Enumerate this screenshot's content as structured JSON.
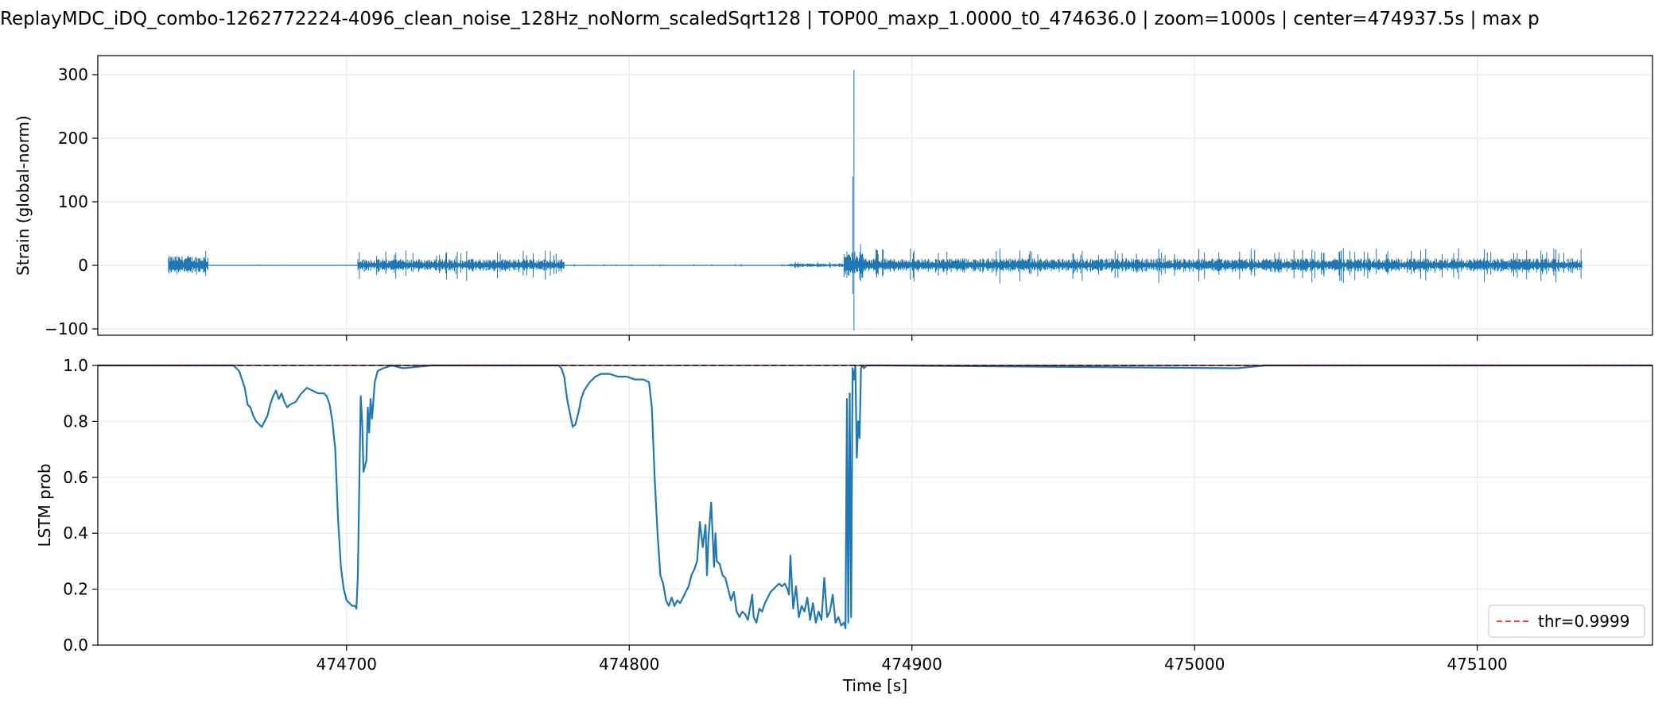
{
  "chart_data": [
    {
      "type": "line",
      "title": "ReplayMDC_iDQ_combo-1262772224-4096_clean_noise_128Hz_noNorm_scaledSqrt128 | TOP00_maxp_1.0000_t0_474636.0 | zoom=1000s | center=474937.5s | max p",
      "xlabel": "",
      "ylabel": "Strain (global-norm)",
      "xlim": [
        474612,
        475162
      ],
      "ylim": [
        -110,
        330
      ],
      "x_ticks": [
        474700,
        474800,
        474900,
        475000,
        475100
      ],
      "y_ticks": [
        -100,
        0,
        100,
        200,
        300
      ],
      "y_tick_labels": [
        "−100",
        "0",
        "100",
        "200",
        "300"
      ],
      "grid": true,
      "color": "#1f77b4",
      "series": [
        {
          "segments": [
            {
              "x_start": 474637,
              "x_end": 474651,
              "amplitude": 15,
              "peak": 27
            },
            {
              "x_start": 474651,
              "x_end": 474704,
              "amplitude": 0.4,
              "peak": 1
            },
            {
              "x_start": 474704,
              "x_end": 474777,
              "amplitude": 10,
              "peak": 24
            },
            {
              "x_start": 474777,
              "x_end": 474856,
              "amplitude": 0.6,
              "peak": 2
            },
            {
              "x_start": 474856,
              "x_end": 474876,
              "amplitude": 3,
              "peak": 6
            },
            {
              "x_start": 474876,
              "x_end": 474883,
              "amplitude": 22,
              "peak": 42
            },
            {
              "x_start": 474883,
              "x_end": 475137,
              "amplitude": 11,
              "peak": 27
            }
          ],
          "spike": {
            "x": 474879.5,
            "max": 308,
            "min": -103
          }
        }
      ]
    },
    {
      "type": "line",
      "xlabel": "Time [s]",
      "ylabel": "LSTM prob",
      "xlim": [
        474612,
        475162
      ],
      "ylim": [
        0.0,
        1.0
      ],
      "x_ticks": [
        474700,
        474800,
        474900,
        475000,
        475100
      ],
      "x_tick_labels": [
        "474700",
        "474800",
        "474900",
        "475000",
        "475100"
      ],
      "y_ticks": [
        0.0,
        0.2,
        0.4,
        0.6,
        0.8,
        1.0
      ],
      "y_tick_labels": [
        "0.0",
        "0.2",
        "0.4",
        "0.6",
        "0.8",
        "1.0"
      ],
      "grid": true,
      "legend": "lower-right",
      "threshold": {
        "value": 0.9999,
        "label": "thr=0.9999",
        "color": "#ff0000"
      },
      "series": [
        {
          "color": "#1f77b4",
          "x": [
            474612,
            474660,
            474662,
            474664,
            474665,
            474666,
            474667,
            474668,
            474669,
            474670,
            474671,
            474672,
            474673,
            474674,
            474675,
            474676,
            474677,
            474678,
            474679,
            474680,
            474682,
            474684,
            474686,
            474688,
            474690,
            474692,
            474693,
            474694,
            474695,
            474696,
            474697,
            474698,
            474699,
            474700,
            474701,
            474702,
            474703,
            474703.5,
            474704,
            474705,
            474705.5,
            474706,
            474707,
            474707.5,
            474708,
            474708.5,
            474709,
            474710,
            474711,
            474713,
            474716,
            474720,
            474730,
            474760,
            474775,
            474776,
            474777,
            474778,
            474779,
            474780,
            474781,
            474782,
            474783,
            474784,
            474786,
            474788,
            474790,
            474793,
            474796,
            474799,
            474802,
            474805,
            474807,
            474808,
            474809,
            474810,
            474811,
            474812,
            474813,
            474814,
            474815,
            474816,
            474817,
            474818,
            474819,
            474820,
            474821,
            474822,
            474823,
            474824,
            474825,
            474826,
            474827,
            474827.5,
            474828,
            474829,
            474830,
            474830.5,
            474831,
            474832,
            474833,
            474834,
            474835,
            474836,
            474837,
            474838,
            474839,
            474840,
            474841,
            474842,
            474843,
            474843.5,
            474844,
            474845,
            474846,
            474847,
            474848,
            474849,
            474850,
            474851,
            474852,
            474853,
            474854,
            474855,
            474856,
            474856.5,
            474857,
            474858,
            474859,
            474860,
            474861,
            474862,
            474863,
            474864,
            474865,
            474866,
            474867,
            474868,
            474869,
            474870,
            474871,
            474872,
            474873,
            474874,
            474875,
            474876,
            474876.5,
            474877,
            474877.5,
            474878,
            474878.5,
            474879,
            474879.5,
            474880,
            474880.5,
            474881,
            474881.5,
            474882,
            474882.5,
            474883,
            474884,
            474886,
            474890,
            475015,
            475020,
            475025,
            475162
          ],
          "y": [
            1.0,
            1.0,
            0.98,
            0.92,
            0.86,
            0.85,
            0.82,
            0.8,
            0.79,
            0.78,
            0.8,
            0.82,
            0.86,
            0.89,
            0.91,
            0.88,
            0.9,
            0.87,
            0.85,
            0.86,
            0.87,
            0.9,
            0.92,
            0.91,
            0.9,
            0.9,
            0.89,
            0.86,
            0.8,
            0.7,
            0.45,
            0.28,
            0.2,
            0.16,
            0.15,
            0.14,
            0.14,
            0.13,
            0.25,
            0.89,
            0.8,
            0.62,
            0.66,
            0.85,
            0.76,
            0.88,
            0.81,
            0.94,
            0.98,
            0.99,
            1.0,
            0.99,
            1.0,
            1.0,
            1.0,
            0.99,
            0.96,
            0.88,
            0.83,
            0.78,
            0.79,
            0.83,
            0.88,
            0.91,
            0.94,
            0.96,
            0.97,
            0.97,
            0.96,
            0.96,
            0.95,
            0.95,
            0.94,
            0.85,
            0.6,
            0.4,
            0.25,
            0.22,
            0.16,
            0.14,
            0.17,
            0.14,
            0.16,
            0.15,
            0.17,
            0.19,
            0.21,
            0.25,
            0.27,
            0.3,
            0.44,
            0.35,
            0.43,
            0.25,
            0.38,
            0.51,
            0.28,
            0.4,
            0.3,
            0.29,
            0.25,
            0.24,
            0.2,
            0.16,
            0.19,
            0.12,
            0.1,
            0.12,
            0.11,
            0.09,
            0.15,
            0.18,
            0.1,
            0.08,
            0.13,
            0.12,
            0.15,
            0.17,
            0.19,
            0.2,
            0.21,
            0.22,
            0.21,
            0.22,
            0.2,
            0.18,
            0.32,
            0.13,
            0.21,
            0.1,
            0.14,
            0.12,
            0.17,
            0.09,
            0.15,
            0.08,
            0.12,
            0.09,
            0.24,
            0.1,
            0.12,
            0.18,
            0.08,
            0.1,
            0.07,
            0.08,
            0.06,
            0.88,
            0.08,
            0.9,
            0.1,
            0.99,
            0.95,
            1.0,
            0.67,
            0.8,
            0.74,
            0.99,
            1.0,
            0.99,
            1.0,
            1.0,
            1.0,
            0.99,
            0.995,
            1.0,
            1.0
          ]
        }
      ]
    }
  ]
}
